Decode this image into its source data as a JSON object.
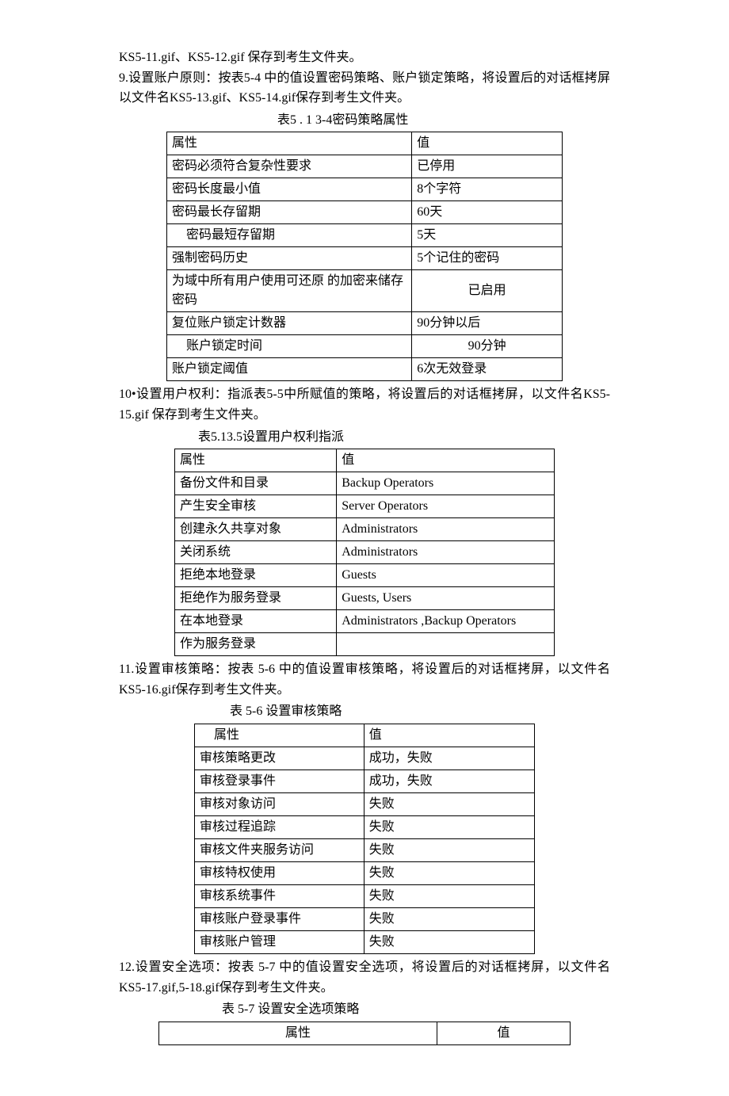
{
  "paragraphs": {
    "p0": "KS5-11.gif、KS5-12.gif 保存到考生文件夹。",
    "p9": "9.设置账户原则：按表5-4 中的值设置密码策略、账户锁定策略，将设置后的对话框拷屏以文件名KS5-13.gif、KS5-14.gif保存到考生文件夹。",
    "p10": "10•设置用户权利：指派表5-5中所赋值的策略，将设置后的对话框拷屏，以文件名KS5-15.gif 保存到考生文件夹。",
    "p11": "11.设置审核策略：按表  5-6 中的值设置审核策略，将设置后的对话框拷屏，以文件名  KS5-16.gif保存到考生文件夹。",
    "p12": "12.设置安全选项：按表  5-7 中的值设置安全选项，将设置后的对话框拷屏，以文件名KS5-17.gif,5-18.gif保存到考生文件夹。"
  },
  "table1": {
    "caption": "表5 . 1 3-4密码策略属性",
    "columns": [
      "属性",
      "值"
    ],
    "rows": [
      [
        "密码必须符合复杂性要求",
        "已停用"
      ],
      [
        "密码长度最小值",
        "8个字符"
      ],
      [
        "密码最长存留期",
        "60天"
      ],
      [
        "密码最短存留期",
        "5天"
      ],
      [
        "强制密码历史",
        "5个记住的密码"
      ],
      [
        "为域中所有用户使用可还原  的加密来储存密码",
        "已启用"
      ],
      [
        "复位账户锁定计数器",
        "90分钟以后"
      ],
      [
        "账户锁定时间",
        "90分钟"
      ],
      [
        "账户锁定阈值",
        "6次无效登录"
      ]
    ],
    "row_styles": {
      "3": {
        "col0_indent": true
      },
      "5": {
        "col1_center": true
      },
      "7": {
        "col0_indent": true,
        "col1_center": true
      }
    }
  },
  "table2": {
    "caption": "表5.13.5设置用户权利指派",
    "columns": [
      "属性",
      "值"
    ],
    "rows": [
      [
        "备份文件和目录",
        "Backup Operators"
      ],
      [
        "产生安全审核",
        "Server Operators"
      ],
      [
        "创建永久共享对象",
        "Administrators"
      ],
      [
        "关闭系统",
        "Administrators"
      ],
      [
        "拒绝本地登录",
        "Guests"
      ],
      [
        "拒绝作为服务登录",
        "Guests,    Users"
      ],
      [
        "在本地登录",
        "Administrators ,Backup Operators"
      ],
      [
        "作为服务登录",
        ""
      ]
    ]
  },
  "table3": {
    "caption": "表  5-6 设置审核策略",
    "columns": [
      "属性",
      "值"
    ],
    "rows": [
      [
        "审核策略更改",
        "成功，失败"
      ],
      [
        "审核登录事件",
        "成功，失败"
      ],
      [
        "审核对象访问",
        "失败"
      ],
      [
        "审核过程追踪",
        "失败"
      ],
      [
        "审核文件夹服务访问",
        "失败"
      ],
      [
        "审核特权使用",
        "失败"
      ],
      [
        "审核系统事件",
        "失败"
      ],
      [
        "审核账户登录事件",
        "失败"
      ],
      [
        "审核账户管理",
        "失败"
      ]
    ],
    "header_col0_indent": true
  },
  "table4": {
    "caption": "表  5-7 设置安全选项策略",
    "columns": [
      "属性",
      "值"
    ],
    "rows": []
  }
}
